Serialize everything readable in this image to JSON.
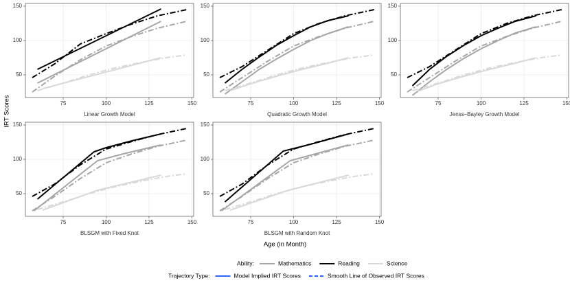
{
  "y_label": "IRT Scores",
  "x_label": "Age (in Month)",
  "legend": {
    "ability": {
      "title": "Ability:",
      "items": [
        {
          "name": "Mathematics",
          "color": "#a6a6a6"
        },
        {
          "name": "Reading",
          "color": "#000000"
        },
        {
          "name": "Science",
          "color": "#d9d9d9"
        }
      ]
    },
    "trajectory": {
      "title": "Trajectory Type:",
      "items": [
        {
          "name": "Model Implied IRT Scores",
          "color": "#3366ff",
          "dash": "solid"
        },
        {
          "name": "Smooth Line of Observed IRT Scores",
          "color": "#3366ff",
          "dash": "dashed"
        }
      ]
    }
  },
  "chart_data": [
    {
      "type": "line",
      "title": "Linear Growth Model",
      "xlim": [
        53,
        151
      ],
      "ylim": [
        17,
        154
      ],
      "xticks": [
        75,
        100,
        125,
        150
      ],
      "yticks": [
        50,
        100,
        150
      ],
      "grid": true,
      "series": [
        {
          "color": "#a6a6a6",
          "dash": "solid",
          "x": [
            60,
            132
          ],
          "values": [
            38,
            128
          ]
        },
        {
          "color": "#000000",
          "dash": "solid",
          "x": [
            60,
            132
          ],
          "values": [
            58,
            146
          ]
        },
        {
          "color": "#d9d9d9",
          "dash": "solid",
          "x": [
            63,
            132
          ],
          "values": [
            30,
            75
          ]
        },
        {
          "color": "#a6a6a6",
          "dash": "dashed",
          "x": [
            57,
            70,
            85,
            100,
            115,
            130,
            147
          ],
          "values": [
            25,
            48,
            72,
            92,
            106,
            118,
            128
          ]
        },
        {
          "color": "#000000",
          "dash": "dashed",
          "x": [
            57,
            70,
            85,
            100,
            115,
            130,
            147
          ],
          "values": [
            46,
            66,
            95,
            110,
            124,
            136,
            145
          ]
        },
        {
          "color": "#d9d9d9",
          "dash": "dashed",
          "x": [
            60,
            75,
            90,
            105,
            120,
            135,
            147
          ],
          "values": [
            27,
            38,
            50,
            60,
            68,
            75,
            79
          ]
        }
      ]
    },
    {
      "type": "line",
      "title": "Quadratic Growth Model",
      "xlim": [
        53,
        151
      ],
      "ylim": [
        17,
        154
      ],
      "xticks": [
        75,
        100,
        125,
        150
      ],
      "yticks": [
        50,
        100,
        150
      ],
      "grid": true,
      "series": [
        {
          "color": "#a6a6a6",
          "dash": "solid",
          "x": [
            60,
            70,
            80,
            90,
            100,
            110,
            120,
            132
          ],
          "values": [
            22,
            40,
            58,
            73,
            87,
            100,
            110,
            120
          ]
        },
        {
          "color": "#000000",
          "dash": "solid",
          "x": [
            60,
            70,
            80,
            90,
            100,
            110,
            120,
            132
          ],
          "values": [
            38,
            58,
            76,
            93,
            107,
            120,
            129,
            136
          ]
        },
        {
          "color": "#d9d9d9",
          "dash": "solid",
          "x": [
            63,
            75,
            90,
            105,
            120,
            132
          ],
          "values": [
            27,
            37,
            48,
            58,
            67,
            75
          ]
        },
        {
          "color": "#a6a6a6",
          "dash": "dashed",
          "x": [
            57,
            70,
            85,
            100,
            115,
            130,
            147
          ],
          "values": [
            25,
            46,
            70,
            92,
            106,
            118,
            128
          ]
        },
        {
          "color": "#000000",
          "dash": "dashed",
          "x": [
            57,
            70,
            85,
            100,
            115,
            130,
            147
          ],
          "values": [
            46,
            62,
            86,
            110,
            125,
            136,
            145
          ]
        },
        {
          "color": "#d9d9d9",
          "dash": "dashed",
          "x": [
            60,
            75,
            90,
            105,
            120,
            135,
            147
          ],
          "values": [
            27,
            38,
            50,
            60,
            68,
            75,
            79
          ]
        }
      ]
    },
    {
      "type": "line",
      "title": "Jenss–Bayley Growth Model",
      "xlim": [
        53,
        151
      ],
      "ylim": [
        17,
        154
      ],
      "xticks": [
        75,
        100,
        125,
        150
      ],
      "yticks": [
        50,
        100,
        150
      ],
      "grid": true,
      "series": [
        {
          "color": "#a6a6a6",
          "dash": "solid",
          "x": [
            60,
            70,
            80,
            90,
            100,
            110,
            120,
            132
          ],
          "values": [
            20,
            40,
            58,
            74,
            88,
            100,
            111,
            120
          ]
        },
        {
          "color": "#000000",
          "dash": "solid",
          "x": [
            60,
            70,
            80,
            90,
            100,
            110,
            120,
            132
          ],
          "values": [
            34,
            58,
            77,
            93,
            107,
            118,
            128,
            136
          ]
        },
        {
          "color": "#d9d9d9",
          "dash": "solid",
          "x": [
            63,
            75,
            90,
            105,
            120,
            132
          ],
          "values": [
            26,
            37,
            48,
            58,
            67,
            75
          ]
        },
        {
          "color": "#a6a6a6",
          "dash": "dashed",
          "x": [
            57,
            70,
            85,
            100,
            115,
            130,
            147
          ],
          "values": [
            25,
            46,
            70,
            92,
            106,
            118,
            128
          ]
        },
        {
          "color": "#000000",
          "dash": "dashed",
          "x": [
            57,
            70,
            85,
            100,
            115,
            130,
            147
          ],
          "values": [
            46,
            62,
            86,
            110,
            125,
            136,
            145
          ]
        },
        {
          "color": "#d9d9d9",
          "dash": "dashed",
          "x": [
            60,
            75,
            90,
            105,
            120,
            135,
            147
          ],
          "values": [
            27,
            38,
            50,
            60,
            68,
            75,
            79
          ]
        }
      ]
    },
    {
      "type": "line",
      "title": "BLSGM with Fixed Knot",
      "xlim": [
        53,
        151
      ],
      "ylim": [
        17,
        154
      ],
      "xticks": [
        75,
        100,
        125,
        150
      ],
      "yticks": [
        50,
        100,
        150
      ],
      "grid": true,
      "series": [
        {
          "color": "#a6a6a6",
          "dash": "solid",
          "x": [
            58,
            95,
            110,
            132
          ],
          "values": [
            25,
            98,
            108,
            121
          ]
        },
        {
          "color": "#000000",
          "dash": "solid",
          "x": [
            60,
            93,
            100,
            115,
            132
          ],
          "values": [
            42,
            111,
            117,
            127,
            137
          ]
        },
        {
          "color": "#d9d9d9",
          "dash": "solid",
          "x": [
            63,
            95,
            132
          ],
          "values": [
            26,
            55,
            77
          ]
        },
        {
          "color": "#a6a6a6",
          "dash": "dashed",
          "x": [
            57,
            70,
            85,
            100,
            115,
            130,
            147
          ],
          "values": [
            25,
            46,
            72,
            95,
            108,
            119,
            128
          ]
        },
        {
          "color": "#000000",
          "dash": "dashed",
          "x": [
            57,
            70,
            85,
            100,
            115,
            130,
            147
          ],
          "values": [
            46,
            64,
            92,
            115,
            126,
            136,
            145
          ]
        },
        {
          "color": "#d9d9d9",
          "dash": "dashed",
          "x": [
            60,
            75,
            90,
            105,
            120,
            135,
            147
          ],
          "values": [
            27,
            38,
            50,
            60,
            68,
            75,
            79
          ]
        }
      ]
    },
    {
      "type": "line",
      "title": "BLSGM with Random Knot",
      "xlim": [
        53,
        151
      ],
      "ylim": [
        17,
        154
      ],
      "xticks": [
        75,
        100,
        125,
        150
      ],
      "yticks": [
        50,
        100,
        150
      ],
      "grid": true,
      "series": [
        {
          "color": "#a6a6a6",
          "dash": "solid",
          "x": [
            58,
            98,
            132
          ],
          "values": [
            25,
            98,
            121
          ]
        },
        {
          "color": "#000000",
          "dash": "solid",
          "x": [
            60,
            94,
            110,
            132
          ],
          "values": [
            38,
            112,
            122,
            137
          ]
        },
        {
          "color": "#d9d9d9",
          "dash": "solid",
          "x": [
            63,
            97,
            132
          ],
          "values": [
            26,
            55,
            77
          ]
        },
        {
          "color": "#a6a6a6",
          "dash": "dashed",
          "x": [
            57,
            70,
            85,
            100,
            115,
            130,
            147
          ],
          "values": [
            25,
            46,
            72,
            95,
            108,
            119,
            128
          ]
        },
        {
          "color": "#000000",
          "dash": "dashed",
          "x": [
            57,
            70,
            85,
            100,
            115,
            130,
            147
          ],
          "values": [
            46,
            64,
            92,
            115,
            126,
            136,
            145
          ]
        },
        {
          "color": "#d9d9d9",
          "dash": "dashed",
          "x": [
            60,
            75,
            90,
            105,
            120,
            135,
            147
          ],
          "values": [
            27,
            38,
            50,
            60,
            68,
            75,
            79
          ]
        }
      ]
    }
  ]
}
